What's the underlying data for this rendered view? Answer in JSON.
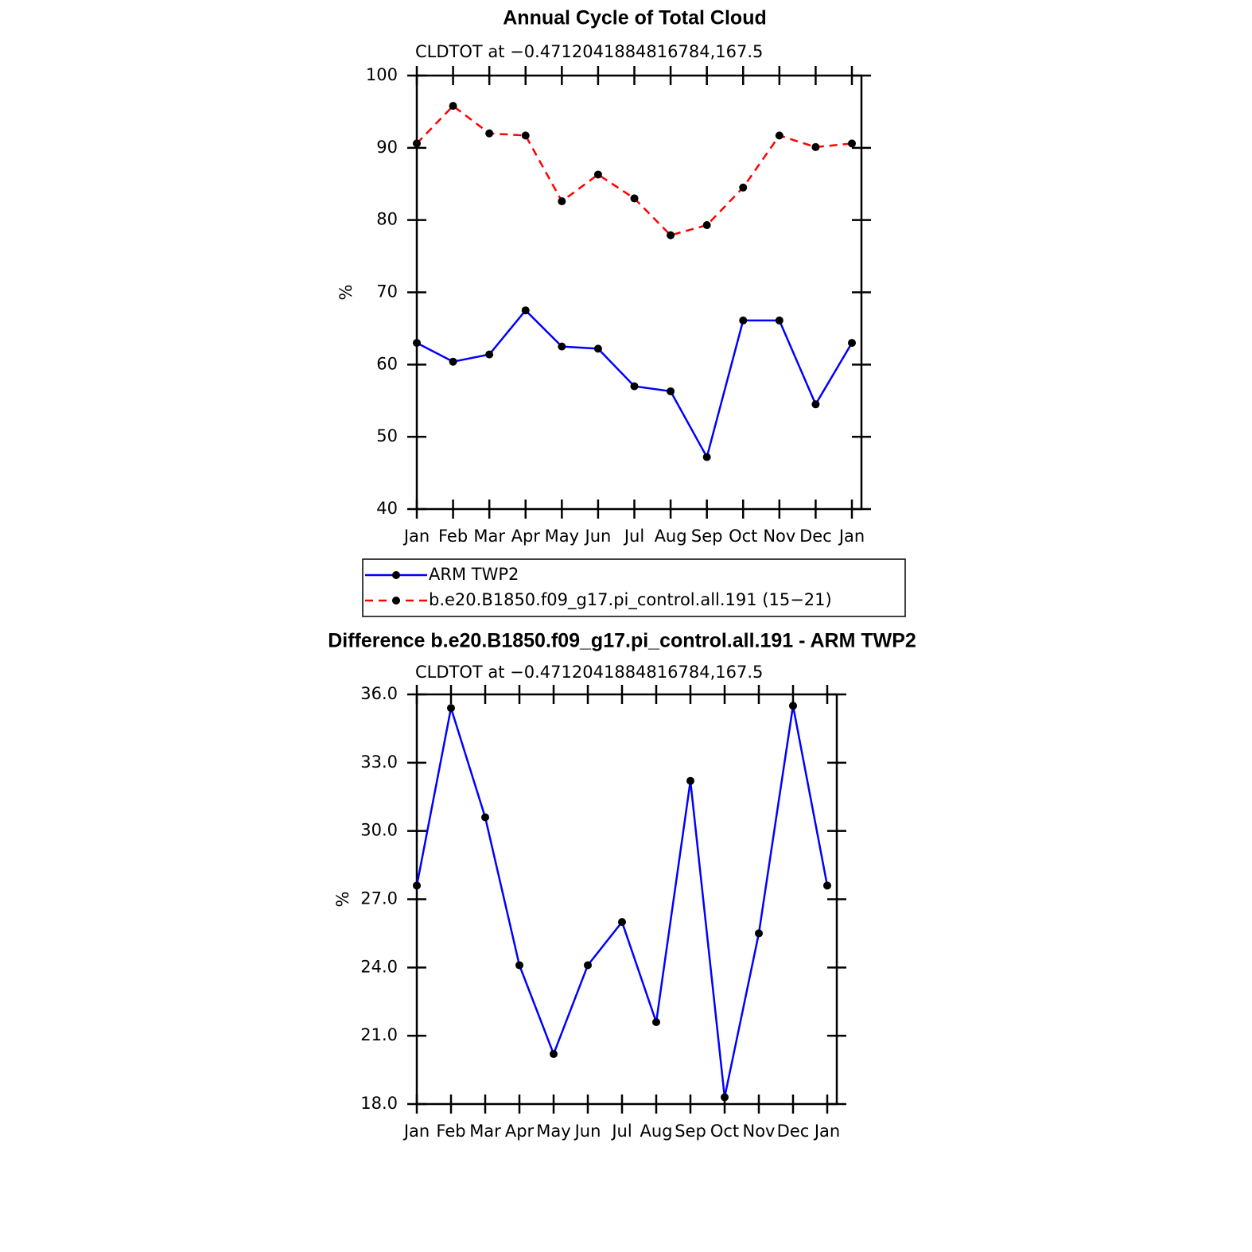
{
  "chart_data": [
    {
      "type": "line",
      "title": "Annual Cycle of Total Cloud",
      "subtitle": "CLDTOT at −0.4712041884816784,167.5",
      "ylabel": "%",
      "categories": [
        "Jan",
        "Feb",
        "Mar",
        "Apr",
        "May",
        "Jun",
        "Jul",
        "Aug",
        "Sep",
        "Oct",
        "Nov",
        "Dec",
        "Jan"
      ],
      "series": [
        {
          "name": "ARM TWP2",
          "color": "#0000ff",
          "dashed": false,
          "values": [
            63.0,
            60.4,
            61.4,
            67.5,
            62.5,
            62.2,
            57.0,
            56.3,
            47.2,
            66.1,
            66.1,
            54.5,
            63.0
          ]
        },
        {
          "name": "b.e20.B1850.f09_g17.pi_control.all.191 (15−21)",
          "color": "#ff0000",
          "dashed": true,
          "values": [
            90.6,
            95.8,
            92.0,
            91.7,
            82.6,
            86.3,
            83.0,
            77.9,
            79.3,
            84.5,
            91.7,
            90.1,
            90.6
          ]
        }
      ],
      "ylim": [
        40,
        100
      ],
      "yticks": [
        40,
        50,
        60,
        70,
        80,
        90,
        100
      ],
      "legend": "below"
    },
    {
      "type": "line",
      "title": "Difference b.e20.B1850.f09_g17.pi_control.all.191 - ARM TWP2",
      "subtitle": "CLDTOT at −0.4712041884816784,167.5",
      "ylabel": "%",
      "categories": [
        "Jan",
        "Feb",
        "Mar",
        "Apr",
        "May",
        "Jun",
        "Jul",
        "Aug",
        "Sep",
        "Oct",
        "Nov",
        "Dec",
        "Jan"
      ],
      "series": [
        {
          "color": "#0000ff",
          "dashed": false,
          "values": [
            27.6,
            35.4,
            30.6,
            24.1,
            20.2,
            24.1,
            26.0,
            21.6,
            32.2,
            18.3,
            25.5,
            35.5,
            27.6
          ]
        }
      ],
      "ylim": [
        18,
        36
      ],
      "yticks": [
        {
          "value": 18,
          "label": "18.0"
        },
        {
          "value": 21,
          "label": "21.0"
        },
        {
          "value": 24,
          "label": "24.0"
        },
        {
          "value": 27,
          "label": "27.0"
        },
        {
          "value": 30,
          "label": "30.0"
        },
        {
          "value": 33,
          "label": "33.0"
        },
        {
          "value": 36,
          "label": "36.0"
        }
      ]
    }
  ]
}
